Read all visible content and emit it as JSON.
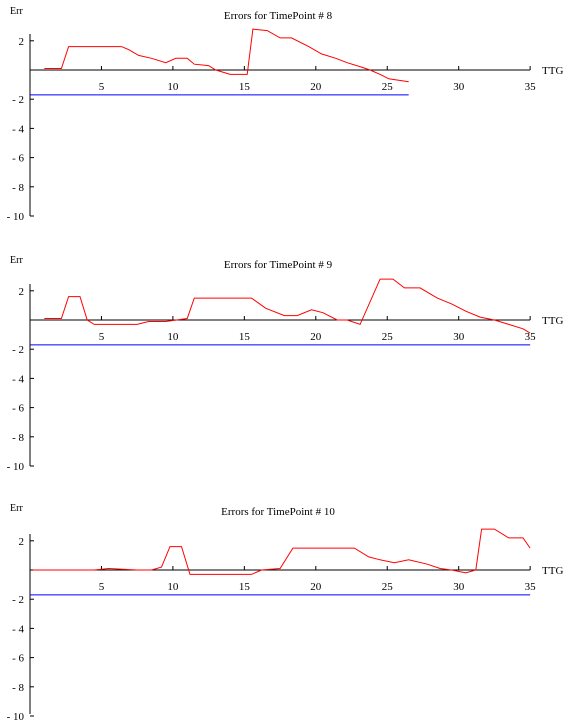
{
  "chart_data": [
    {
      "type": "line",
      "title": "Errors for TimePoint # 8",
      "xlabel": "TTG",
      "ylabel": "Err",
      "xlim": [
        0,
        35
      ],
      "ylim": [
        -10,
        3
      ],
      "xticks": [
        5,
        10,
        15,
        20,
        25,
        30,
        35
      ],
      "yticks": [
        2,
        -2,
        -4,
        -6,
        -8,
        -10
      ],
      "ytick_labels": [
        "2",
        "- 2",
        "- 4",
        "- 6",
        "- 8",
        "- 10"
      ],
      "reference_y": -1.7,
      "reference_x_range": [
        0,
        26.5
      ],
      "series": [
        {
          "x": [
            1,
            2.2,
            2.7,
            4.4,
            6.4,
            6.9,
            7.6,
            8.5,
            9.5,
            10.2,
            11.0,
            11.5,
            12.5,
            13,
            14,
            15.2,
            15.6,
            16.6,
            17.5,
            18.3,
            19.5,
            20.4,
            21.4,
            22.2,
            23.2,
            23.8,
            24.5,
            25.1,
            26.5
          ],
          "y": [
            0.1,
            0.1,
            1.6,
            1.6,
            1.6,
            1.4,
            1.0,
            0.8,
            0.5,
            0.8,
            0.8,
            0.4,
            0.3,
            0.0,
            -0.3,
            -0.3,
            2.8,
            2.7,
            2.2,
            2.2,
            1.6,
            1.1,
            0.8,
            0.5,
            0.2,
            0.0,
            -0.3,
            -0.6,
            -0.8
          ]
        }
      ]
    },
    {
      "type": "line",
      "title": "Errors for TimePoint # 9",
      "xlabel": "TTG",
      "ylabel": "Err",
      "xlim": [
        0,
        35
      ],
      "ylim": [
        -10,
        3
      ],
      "xticks": [
        5,
        10,
        15,
        20,
        25,
        30,
        35
      ],
      "yticks": [
        2,
        -2,
        -4,
        -6,
        -8,
        -10
      ],
      "ytick_labels": [
        "2",
        "- 2",
        "- 4",
        "- 6",
        "- 8",
        "- 10"
      ],
      "reference_y": -1.7,
      "reference_x_range": [
        0,
        35
      ],
      "series": [
        {
          "x": [
            1,
            2.2,
            2.7,
            3.5,
            4.0,
            4.5,
            7.5,
            8.3,
            9.5,
            11.0,
            11.5,
            15.5,
            16.5,
            17.8,
            18.7,
            19.7,
            20.5,
            21.5,
            22.2,
            23.1,
            24.5,
            25.4,
            26.2,
            27.3,
            28.5,
            29.5,
            30.5,
            31.5,
            32.5,
            33.5,
            34.5,
            35
          ],
          "y": [
            0.1,
            0.1,
            1.6,
            1.6,
            0.0,
            -0.3,
            -0.3,
            -0.1,
            -0.1,
            0.1,
            1.5,
            1.5,
            0.8,
            0.3,
            0.3,
            0.7,
            0.5,
            0.0,
            0.0,
            -0.3,
            2.8,
            2.8,
            2.2,
            2.2,
            1.5,
            1.1,
            0.6,
            0.2,
            0.0,
            -0.3,
            -0.6,
            -0.9
          ]
        }
      ]
    },
    {
      "type": "line",
      "title": "Errors for TimePoint # 10",
      "xlabel": "TTG",
      "ylabel": "Err",
      "xlim": [
        0,
        35
      ],
      "ylim": [
        -10,
        3
      ],
      "xticks": [
        5,
        10,
        15,
        20,
        25,
        30,
        35
      ],
      "yticks": [
        2,
        -2,
        -4,
        -6,
        -8,
        -10
      ],
      "ytick_labels": [
        "2",
        "- 2",
        "- 4",
        "- 6",
        "- 8",
        "- 10"
      ],
      "reference_y": -1.7,
      "reference_x_range": [
        0,
        35
      ],
      "series": [
        {
          "x": [
            0.2,
            4.5,
            5.5,
            7.5,
            8.5,
            9.2,
            9.8,
            10.6,
            11.2,
            15.5,
            16.2,
            17.5,
            18.4,
            22.7,
            23.7,
            24.5,
            25.5,
            26.5,
            27.8,
            28.7,
            29.5,
            30.5,
            31.2,
            31.6,
            32.5,
            33.5,
            34.5,
            35
          ],
          "y": [
            0.0,
            0.0,
            0.1,
            0.0,
            0.0,
            0.2,
            1.6,
            1.6,
            -0.3,
            -0.3,
            0.0,
            0.1,
            1.5,
            1.5,
            0.9,
            0.7,
            0.5,
            0.7,
            0.4,
            0.1,
            0.0,
            -0.2,
            0.0,
            2.8,
            2.8,
            2.2,
            2.2,
            1.5
          ]
        }
      ]
    }
  ]
}
